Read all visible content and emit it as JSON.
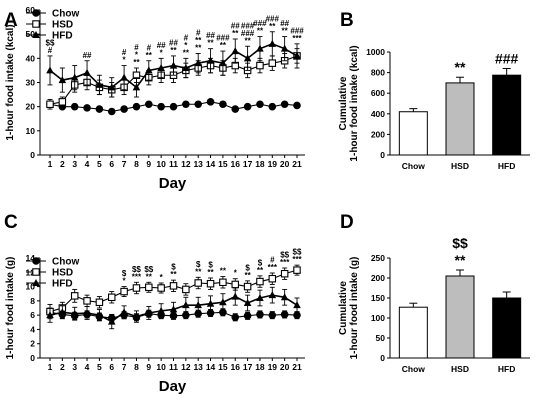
{
  "panels": {
    "A": {
      "letter": "A"
    },
    "B": {
      "letter": "B"
    },
    "C": {
      "letter": "C"
    },
    "D": {
      "letter": "D"
    }
  },
  "chart_data": [
    {
      "id": "A",
      "type": "line",
      "xlabel": "Day",
      "ylabel": "1-hour food intake (kcal)",
      "ylim": [
        0,
        60
      ],
      "yticks": [
        0,
        10,
        20,
        30,
        40,
        50,
        60
      ],
      "x": [
        1,
        2,
        3,
        4,
        5,
        6,
        7,
        8,
        9,
        10,
        11,
        12,
        13,
        14,
        15,
        16,
        17,
        18,
        19,
        20,
        21
      ],
      "legend": [
        "Chow",
        "HSD",
        "HFD"
      ],
      "legend_position": "top-left",
      "series": [
        {
          "name": "Chow",
          "marker": "circle-filled",
          "values": [
            21,
            20,
            20,
            19.5,
            19,
            18,
            19,
            20,
            21,
            20,
            20,
            21,
            21,
            22,
            21,
            19,
            20,
            21,
            20,
            21,
            20.5
          ],
          "errors": [
            1,
            1,
            1,
            1,
            1,
            1,
            1,
            1,
            1,
            1,
            1,
            1,
            1,
            1,
            1,
            1,
            1,
            1,
            1,
            1,
            1
          ]
        },
        {
          "name": "HSD",
          "marker": "square-open",
          "values": [
            21,
            22,
            29,
            30,
            28,
            27,
            28,
            33,
            32,
            33,
            33,
            35,
            36,
            37,
            36,
            37,
            35,
            37,
            38,
            39,
            41
          ],
          "errors": [
            2,
            2,
            3,
            3,
            3,
            3,
            3,
            3,
            3,
            3,
            3,
            3,
            3,
            3,
            3,
            3,
            3,
            3,
            3,
            3,
            3
          ]
        },
        {
          "name": "HFD",
          "marker": "triangle-filled",
          "values": [
            35,
            31,
            32,
            34,
            29,
            28,
            32,
            28,
            35,
            36,
            37,
            36,
            38,
            39,
            38,
            43,
            40,
            44,
            46,
            44,
            41
          ],
          "errors": [
            6,
            5,
            5,
            5,
            4,
            4,
            5,
            4,
            4,
            4,
            4,
            4,
            4,
            5,
            5,
            5,
            5,
            5,
            5,
            5,
            5
          ]
        }
      ],
      "annotations": [
        {
          "x": 1,
          "lines": [
            "$$",
            "#"
          ]
        },
        {
          "x": 4,
          "lines": [
            "##"
          ]
        },
        {
          "x": 7,
          "lines": [
            "#",
            "*"
          ]
        },
        {
          "x": 8,
          "lines": [
            "#",
            "*",
            "**"
          ]
        },
        {
          "x": 9,
          "lines": [
            "#",
            "**"
          ]
        },
        {
          "x": 10,
          "lines": [
            "##",
            "*"
          ]
        },
        {
          "x": 11,
          "lines": [
            "##",
            "**"
          ]
        },
        {
          "x": 12,
          "lines": [
            "#",
            "*",
            "**"
          ]
        },
        {
          "x": 13,
          "lines": [
            "#",
            "**",
            "**"
          ]
        },
        {
          "x": 14,
          "lines": [
            "##",
            "**"
          ]
        },
        {
          "x": 15,
          "lines": [
            "###",
            "**"
          ]
        },
        {
          "x": 16,
          "lines": [
            "##",
            "**"
          ]
        },
        {
          "x": 17,
          "lines": [
            "###",
            "###",
            "**"
          ]
        },
        {
          "x": 18,
          "lines": [
            "###",
            "**"
          ]
        },
        {
          "x": 19,
          "lines": [
            "###",
            "**"
          ]
        },
        {
          "x": 20,
          "lines": [
            "##",
            "**"
          ]
        },
        {
          "x": 21,
          "lines": [
            "###",
            "***"
          ]
        }
      ]
    },
    {
      "id": "B",
      "type": "bar",
      "categories": [
        "Chow",
        "HSD",
        "HFD"
      ],
      "values": [
        420,
        700,
        775
      ],
      "errors": [
        30,
        55,
        65
      ],
      "colors": [
        "#ffffff",
        "#bdbdbd",
        "#000000"
      ],
      "ylabel": "Cumulative\n1-hour food intake (kcal)",
      "ylim": [
        0,
        1000
      ],
      "yticks": [
        0,
        200,
        400,
        600,
        800,
        1000
      ],
      "labels": [
        [],
        [
          "**"
        ],
        [
          "###"
        ]
      ]
    },
    {
      "id": "C",
      "type": "line",
      "xlabel": "Day",
      "ylabel": "1-hour food intake (g)",
      "ylim": [
        0,
        14
      ],
      "yticks": [
        0,
        2,
        4,
        6,
        8,
        10,
        12,
        14
      ],
      "x": [
        1,
        2,
        3,
        4,
        5,
        6,
        7,
        8,
        9,
        10,
        11,
        12,
        13,
        14,
        15,
        16,
        17,
        18,
        19,
        20,
        21
      ],
      "legend": [
        "Chow",
        "HSD",
        "HFD"
      ],
      "legend_position": "top-left",
      "series": [
        {
          "name": "Chow",
          "marker": "circle-filled",
          "values": [
            6.4,
            6.1,
            5.9,
            6.1,
            5.8,
            5.6,
            6.0,
            5.7,
            6.2,
            6.0,
            5.9,
            6.0,
            6.2,
            6.3,
            6.4,
            5.7,
            5.9,
            6.1,
            6.0,
            6.1,
            6.0
          ],
          "errors": [
            0.5,
            0.5,
            0.5,
            0.5,
            0.5,
            0.5,
            0.5,
            0.5,
            0.5,
            0.5,
            0.5,
            0.5,
            0.5,
            0.5,
            0.5,
            0.5,
            0.5,
            0.5,
            0.5,
            0.5,
            0.5
          ]
        },
        {
          "name": "HSD",
          "marker": "square-open",
          "values": [
            6.5,
            7.0,
            8.7,
            8.0,
            7.8,
            8.5,
            9.3,
            9.8,
            9.9,
            9.8,
            10.1,
            9.6,
            10.5,
            10.4,
            10.6,
            10.3,
            10.0,
            10.7,
            11.1,
            11.8,
            12.3
          ],
          "errors": [
            1.0,
            0.8,
            0.9,
            0.8,
            0.8,
            0.8,
            0.7,
            0.8,
            0.7,
            0.7,
            0.8,
            0.8,
            0.8,
            0.8,
            0.8,
            0.8,
            0.8,
            0.8,
            0.8,
            0.8,
            0.7
          ]
        },
        {
          "name": "HFD",
          "marker": "triangle-filled",
          "values": [
            6.0,
            6.4,
            6.2,
            6.3,
            6.0,
            5.1,
            6.4,
            5.8,
            6.3,
            6.6,
            6.8,
            7.4,
            7.4,
            7.6,
            7.8,
            8.6,
            7.7,
            8.4,
            8.8,
            8.5,
            7.4
          ],
          "errors": [
            1.0,
            0.9,
            0.9,
            0.9,
            0.8,
            1.0,
            0.9,
            0.8,
            0.9,
            1.0,
            1.0,
            1.1,
            1.1,
            1.1,
            1.2,
            1.2,
            1.1,
            1.1,
            1.1,
            1.1,
            1.0
          ]
        }
      ],
      "annotations": [
        {
          "x": 7,
          "lines": [
            "$",
            "*"
          ]
        },
        {
          "x": 8,
          "lines": [
            "$$",
            "***"
          ]
        },
        {
          "x": 9,
          "lines": [
            "$$",
            "**"
          ]
        },
        {
          "x": 10,
          "lines": [
            "*"
          ]
        },
        {
          "x": 11,
          "lines": [
            "$",
            "**"
          ]
        },
        {
          "x": 13,
          "lines": [
            "$",
            "**"
          ]
        },
        {
          "x": 14,
          "lines": [
            "$",
            "**"
          ]
        },
        {
          "x": 15,
          "lines": [
            "**"
          ]
        },
        {
          "x": 16,
          "lines": [
            "*"
          ]
        },
        {
          "x": 17,
          "lines": [
            "$",
            "**"
          ]
        },
        {
          "x": 18,
          "lines": [
            "$",
            "**"
          ]
        },
        {
          "x": 19,
          "lines": [
            "#",
            "***"
          ]
        },
        {
          "x": 20,
          "lines": [
            "$$",
            "***"
          ]
        },
        {
          "x": 21,
          "lines": [
            "$$",
            "***"
          ]
        }
      ]
    },
    {
      "id": "D",
      "type": "bar",
      "categories": [
        "Chow",
        "HSD",
        "HFD"
      ],
      "values": [
        127,
        205,
        150
      ],
      "errors": [
        10,
        15,
        15
      ],
      "colors": [
        "#ffffff",
        "#bdbdbd",
        "#000000"
      ],
      "ylabel": "Cumulative\n1-hour food intake (g)",
      "ylim": [
        0,
        250
      ],
      "yticks": [
        0,
        50,
        100,
        150,
        200,
        250
      ],
      "labels": [
        [],
        [
          "$$",
          "**"
        ],
        []
      ]
    }
  ]
}
